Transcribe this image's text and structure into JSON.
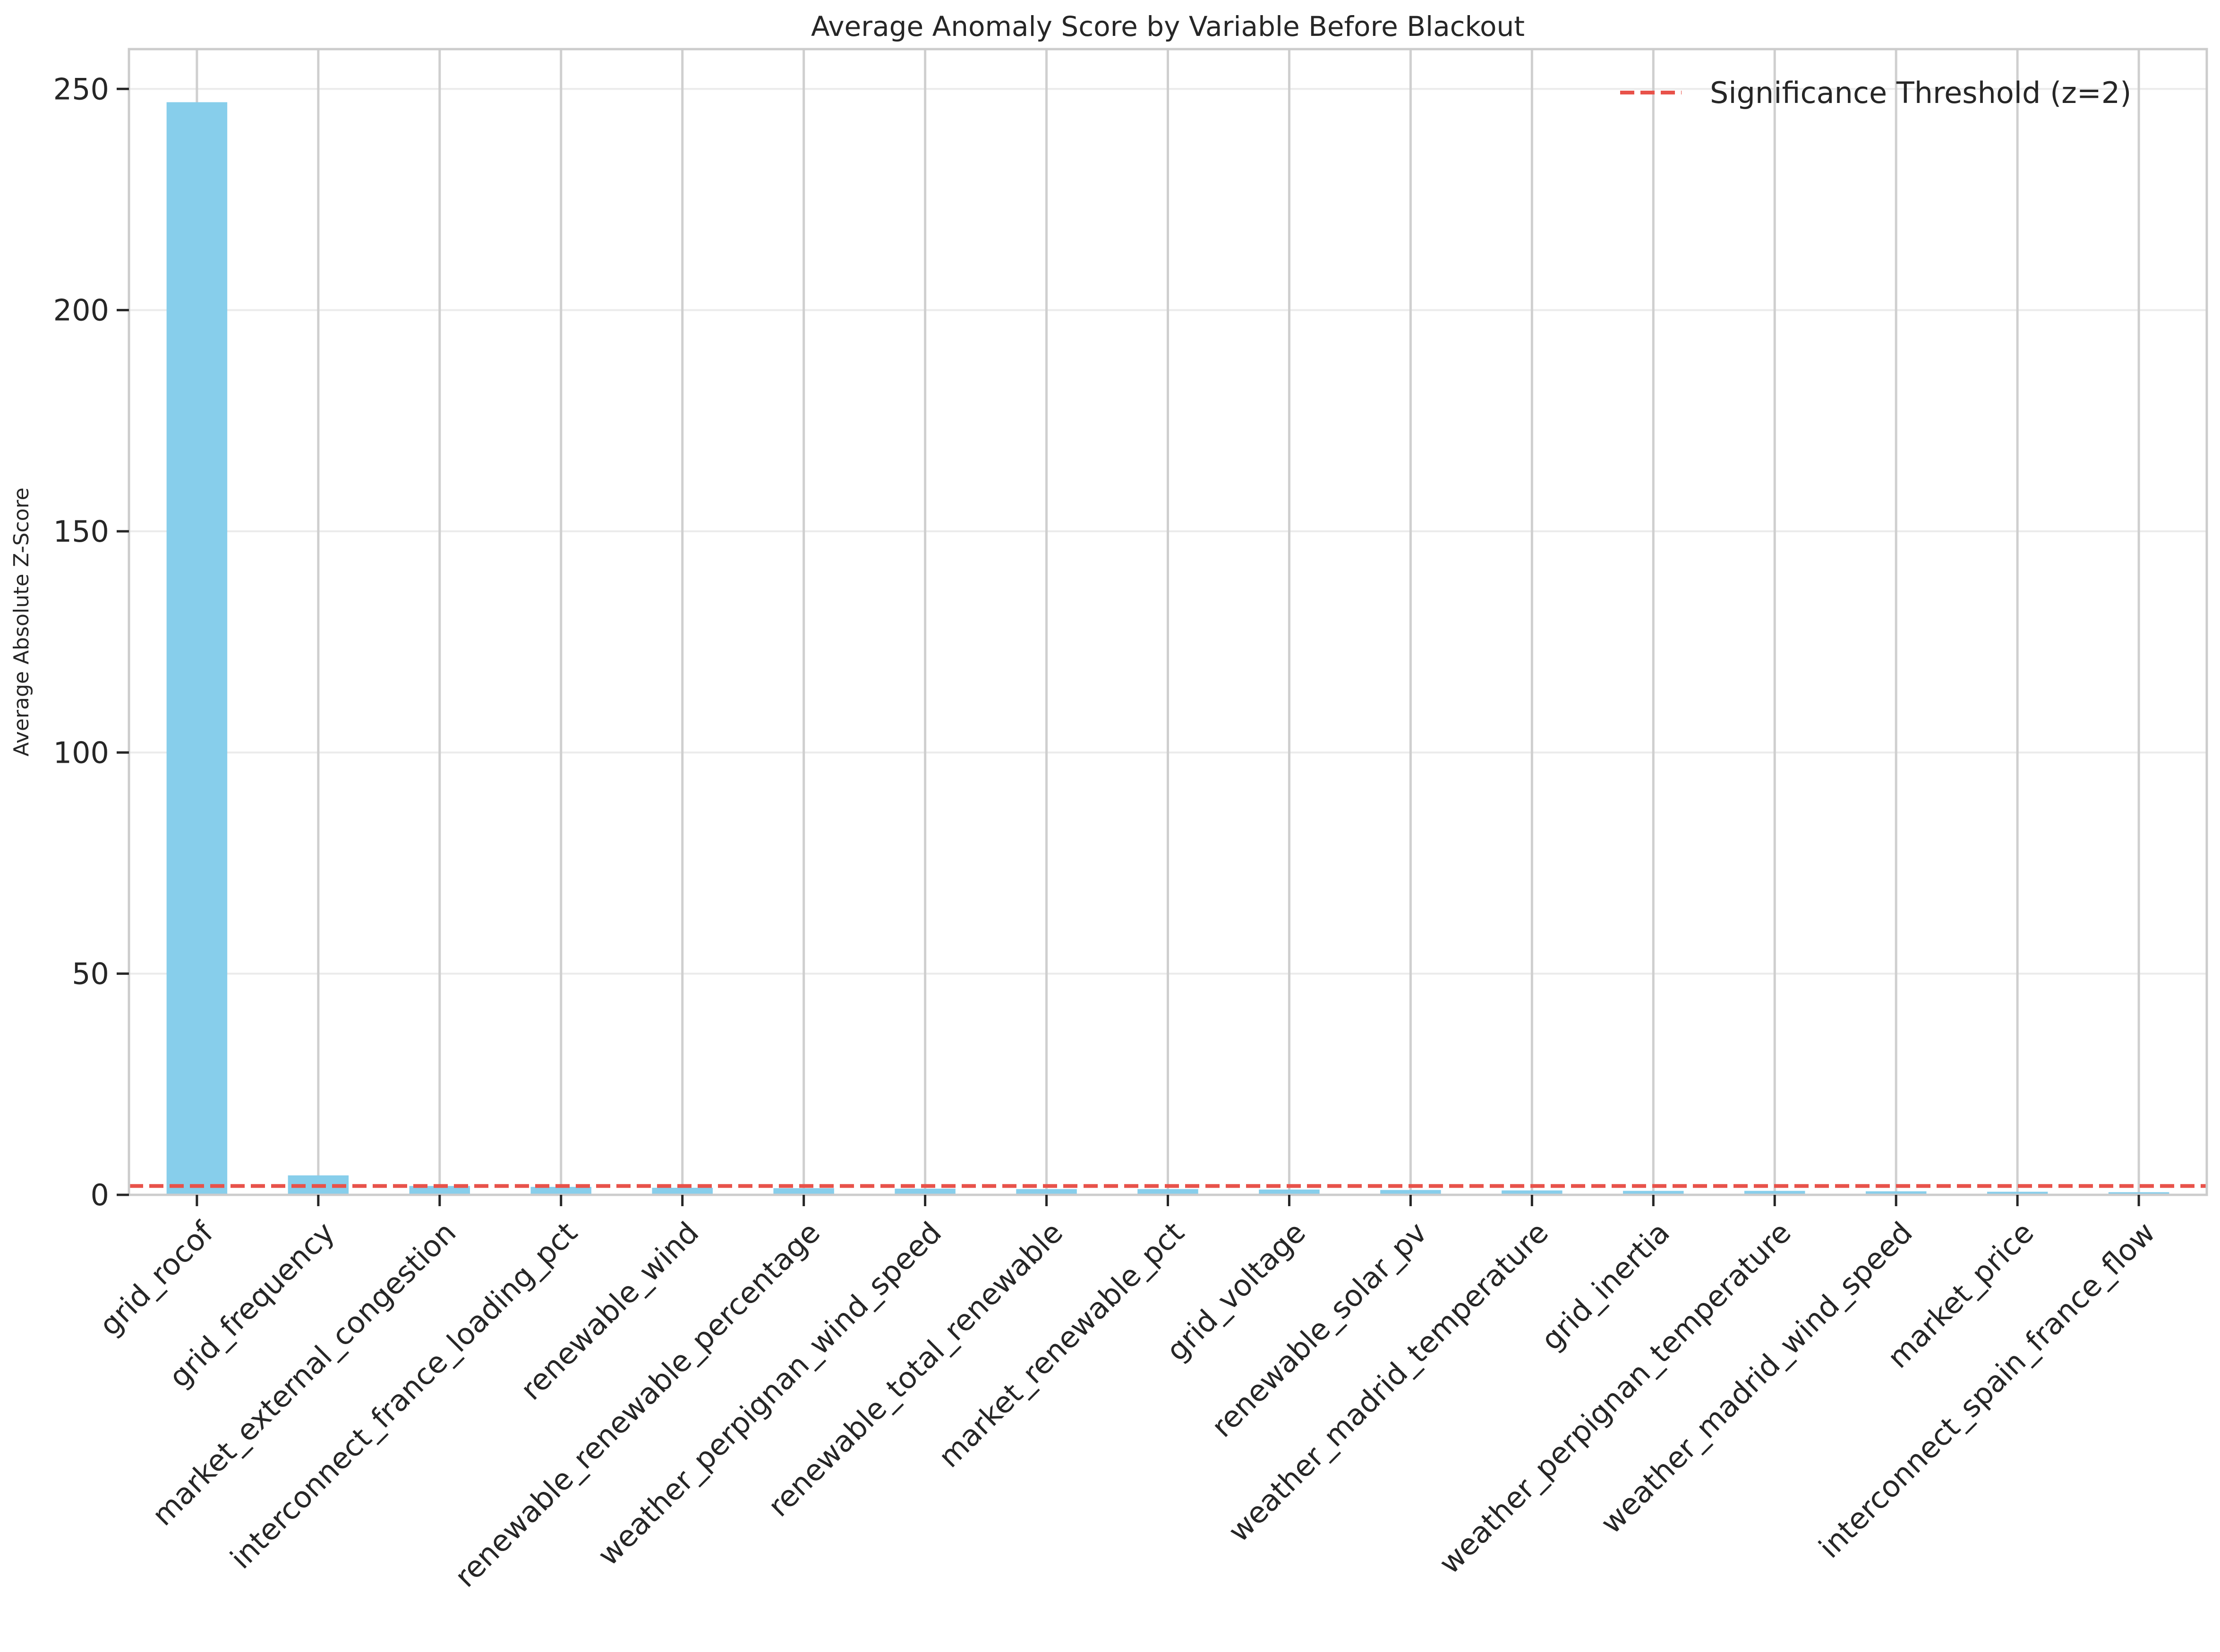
{
  "chart_data": {
    "type": "bar",
    "title": "Average Anomaly Score by Variable Before Blackout",
    "xlabel": "",
    "ylabel": "Average Absolute Z-Score",
    "categories": [
      "grid_rocof",
      "grid_frequency",
      "market_external_congestion",
      "interconnect_france_loading_pct",
      "renewable_wind",
      "renewable_renewable_percentage",
      "weather_perpignan_wind_speed",
      "renewable_total_renewable",
      "market_renewable_pct",
      "grid_voltage",
      "renewable_solar_pv",
      "weather_madrid_temperature",
      "grid_inertia",
      "weather_perpignan_temperature",
      "weather_madrid_wind_speed",
      "market_price",
      "interconnect_spain_france_flow"
    ],
    "values": [
      247,
      4.4,
      2.0,
      1.8,
      1.6,
      1.5,
      1.4,
      1.3,
      1.3,
      1.2,
      1.1,
      1.0,
      0.9,
      0.9,
      0.8,
      0.7,
      0.6
    ],
    "ylim": [
      0,
      259
    ],
    "yticks": [
      "0",
      "50",
      "100",
      "150",
      "200",
      "250"
    ],
    "ytick_values": [
      0,
      50,
      100,
      150,
      200,
      250
    ],
    "bar_color": "#87ceeb",
    "threshold": {
      "value": 2,
      "label": "Significance Threshold (z=2)",
      "color": "#e8524a",
      "style": "dashed"
    },
    "grid": true,
    "legend_position": "top-right"
  }
}
